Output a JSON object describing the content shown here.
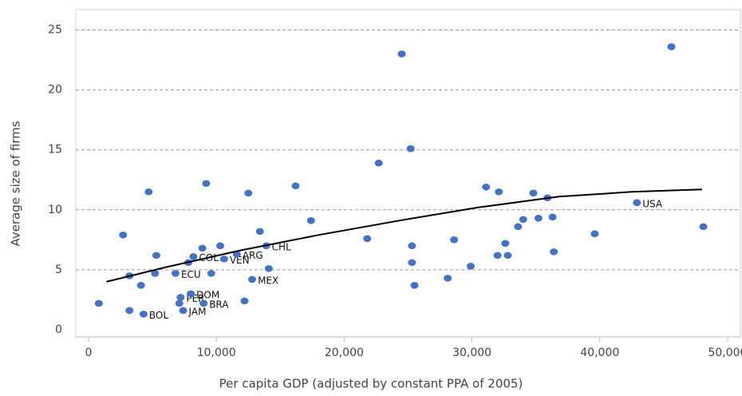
{
  "chart_data": {
    "type": "scatter",
    "x_label": "Per capita GDP (adjusted by constant PPA of 2005)",
    "y_label": "Average size of firms",
    "xlim": [
      -1000,
      51000
    ],
    "ylim": [
      -0.6,
      26.7
    ],
    "xticks": [
      0,
      {
        "value": 10000,
        "label": "10,000"
      },
      {
        "value": 20000,
        "label": "20,000"
      },
      {
        "value": 30000,
        "label": "30,000"
      },
      {
        "value": 40000,
        "label": "40,000"
      },
      {
        "value": 50000,
        "label": "50,000"
      }
    ],
    "yticks": [
      0,
      5,
      10,
      15,
      20,
      25
    ],
    "grid": true,
    "series": [
      {
        "color": "#4472c4",
        "x": [
          800,
          2700,
          3200,
          3200,
          4100,
          4300,
          4700,
          5300,
          5200,
          6800,
          7100,
          7200,
          7400,
          7800,
          8000,
          8200,
          8900,
          9000,
          9200,
          9600,
          10300,
          10600,
          11600,
          12200,
          12500,
          12800,
          13400,
          13900,
          14100,
          16200,
          17400,
          21800,
          22700,
          24500,
          25200,
          25300,
          25300,
          25500,
          28100,
          28600,
          29900,
          31100,
          32100,
          32000,
          32600,
          32800,
          33600,
          34000,
          34800,
          35200,
          35900,
          36300,
          36400,
          39600,
          42900,
          45600,
          48100
        ],
        "y": [
          2.2,
          7.9,
          4.5,
          1.6,
          3.7,
          1.3,
          11.5,
          6.2,
          4.7,
          4.7,
          2.2,
          2.7,
          1.6,
          5.6,
          3.0,
          6.1,
          6.8,
          2.2,
          12.2,
          4.7,
          7.0,
          5.9,
          6.3,
          2.4,
          11.4,
          4.2,
          8.2,
          7.0,
          5.1,
          12.0,
          9.1,
          7.6,
          13.9,
          23.0,
          15.1,
          7.0,
          5.6,
          3.7,
          4.3,
          7.5,
          5.3,
          11.9,
          11.5,
          6.2,
          7.2,
          6.2,
          8.6,
          9.2,
          11.4,
          9.3,
          11.0,
          9.4,
          6.5,
          8.0,
          10.6,
          23.6,
          8.6
        ],
        "labels": [
          null,
          null,
          null,
          null,
          null,
          "BOL",
          null,
          null,
          null,
          "ECU",
          null,
          "PER",
          "JAM",
          null,
          "DOM",
          "COL",
          null,
          "BRA",
          null,
          null,
          null,
          "VEN",
          "ARG",
          null,
          null,
          "MEX",
          null,
          "CHL",
          null,
          null,
          null,
          null,
          null,
          null,
          null,
          null,
          null,
          null,
          null,
          null,
          null,
          null,
          null,
          null,
          null,
          null,
          null,
          null,
          null,
          null,
          null,
          null,
          null,
          null,
          "USA",
          null,
          null
        ]
      }
    ],
    "trendline": {
      "color": "#000000",
      "x": [
        1400,
        6000,
        11800,
        18000,
        24300,
        30500,
        36800,
        42500,
        48000
      ],
      "y": [
        4.0,
        5.2,
        6.6,
        7.9,
        9.1,
        10.2,
        11.1,
        11.5,
        11.7
      ]
    }
  }
}
